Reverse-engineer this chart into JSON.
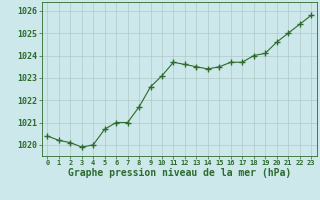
{
  "x": [
    0,
    1,
    2,
    3,
    4,
    5,
    6,
    7,
    8,
    9,
    10,
    11,
    12,
    13,
    14,
    15,
    16,
    17,
    18,
    19,
    20,
    21,
    22,
    23
  ],
  "y": [
    1020.4,
    1020.2,
    1020.1,
    1019.9,
    1020.0,
    1020.7,
    1021.0,
    1021.0,
    1021.7,
    1022.6,
    1023.1,
    1023.7,
    1023.6,
    1023.5,
    1023.4,
    1023.5,
    1023.7,
    1023.7,
    1024.0,
    1024.1,
    1024.6,
    1025.0,
    1025.4,
    1025.8
  ],
  "line_color": "#2d6a2d",
  "marker": "+",
  "marker_size": 4,
  "background_color": "#cce8ea",
  "grid_color": "#b0c8c8",
  "xlabel": "Graphe pression niveau de la mer (hPa)",
  "xlabel_color": "#2d6a2d",
  "tick_color": "#2d6a2d",
  "ylim": [
    1019.5,
    1026.4
  ],
  "yticks": [
    1020,
    1021,
    1022,
    1023,
    1024,
    1025,
    1026
  ],
  "xlim": [
    -0.5,
    23.5
  ],
  "xticks": [
    0,
    1,
    2,
    3,
    4,
    5,
    6,
    7,
    8,
    9,
    10,
    11,
    12,
    13,
    14,
    15,
    16,
    17,
    18,
    19,
    20,
    21,
    22,
    23
  ],
  "xtick_labels": [
    "0",
    "1",
    "2",
    "3",
    "4",
    "5",
    "6",
    "7",
    "8",
    "9",
    "10",
    "11",
    "12",
    "13",
    "14",
    "15",
    "16",
    "17",
    "18",
    "19",
    "20",
    "21",
    "22",
    "23"
  ]
}
